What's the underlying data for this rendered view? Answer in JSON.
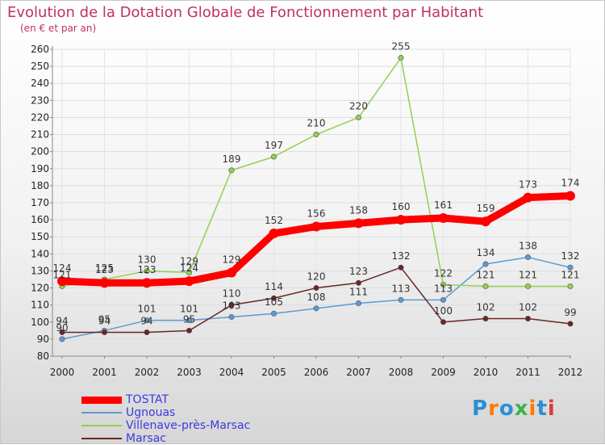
{
  "chart_data": {
    "type": "line",
    "title": "Evolution de la Dotation Globale de Fonctionnement par Habitant",
    "subtitle": "(en € et par an)",
    "x": [
      "2000",
      "2001",
      "2002",
      "2003",
      "2004",
      "2005",
      "2006",
      "2007",
      "2008",
      "2009",
      "2010",
      "2011",
      "2012"
    ],
    "ylim": [
      80,
      260
    ],
    "yticks": [
      80,
      90,
      100,
      110,
      120,
      130,
      140,
      150,
      160,
      170,
      180,
      190,
      200,
      210,
      220,
      230,
      240,
      250,
      260
    ],
    "series": [
      {
        "name": "TOSTAT",
        "color": "#ff0000",
        "values": [
          124,
          123,
          123,
          124,
          129,
          152,
          156,
          158,
          160,
          161,
          159,
          173,
          174
        ]
      },
      {
        "name": "Ugnouas",
        "color": "#5b9bd5",
        "values": [
          90,
          95,
          101,
          101,
          103,
          105,
          108,
          111,
          113,
          113,
          134,
          138,
          132
        ]
      },
      {
        "name": "Villenave-près-Marsac",
        "color": "#92d050",
        "values": [
          121,
          125,
          130,
          129,
          189,
          197,
          210,
          220,
          255,
          122,
          121,
          121,
          121
        ]
      },
      {
        "name": "Marsac",
        "color": "#6b2525",
        "values": [
          94,
          94,
          94,
          95,
          110,
          114,
          120,
          123,
          132,
          100,
          102,
          102,
          99
        ]
      }
    ]
  },
  "logo": {
    "letters": [
      "P",
      "r",
      "o",
      "x",
      "i",
      "t",
      "i"
    ],
    "colors": [
      "#2a8fd6",
      "#ff7a00",
      "#2a8fd6",
      "#3bb34a",
      "#ff7a00",
      "#2a8fd6",
      "#e03a3a"
    ]
  }
}
